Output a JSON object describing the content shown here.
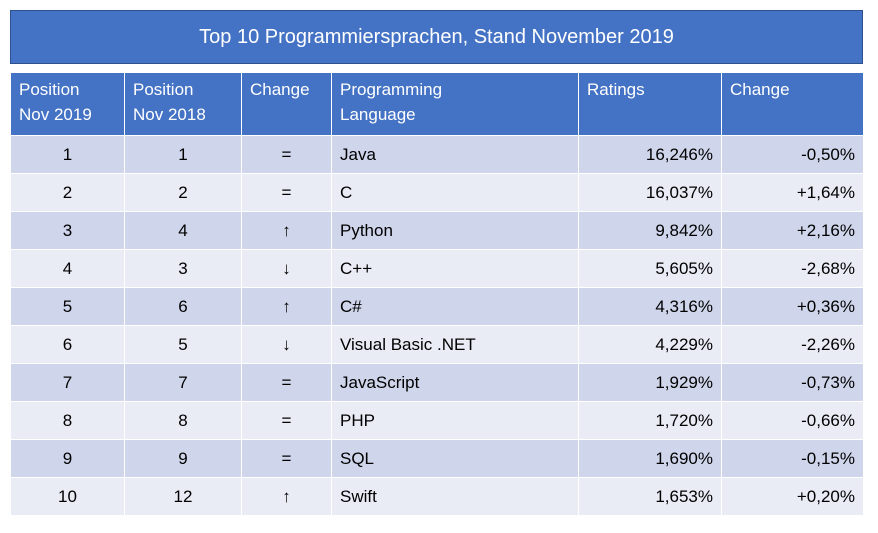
{
  "title": "Top 10 Programmiersprachen, Stand November 2019",
  "table": {
    "header": [
      "Position\nNov 2019",
      "Position\nNov 2018",
      "Change",
      "Programming\nLanguage",
      "Ratings",
      "Change"
    ],
    "rows": [
      [
        "1",
        "1",
        "=",
        "Java",
        "16,246%",
        "-0,50%"
      ],
      [
        "2",
        "2",
        "=",
        "C",
        "16,037%",
        "+1,64%"
      ],
      [
        "3",
        "4",
        "↑",
        "Python",
        "9,842%",
        "+2,16%"
      ],
      [
        "4",
        "3",
        "↓",
        "C++",
        "5,605%",
        "-2,68%"
      ],
      [
        "5",
        "6",
        "↑",
        "C#",
        "4,316%",
        "+0,36%"
      ],
      [
        "6",
        "5",
        "↓",
        "Visual Basic .NET",
        "4,229%",
        "-2,26%"
      ],
      [
        "7",
        "7",
        "=",
        "JavaScript",
        "1,929%",
        "-0,73%"
      ],
      [
        "8",
        "8",
        "=",
        "PHP",
        "1,720%",
        "-0,66%"
      ],
      [
        "9",
        "9",
        "=",
        "SQL",
        "1,690%",
        "-0,15%"
      ],
      [
        "10",
        "12",
        "↑",
        "Swift",
        "1,653%",
        "+0,20%"
      ]
    ]
  }
}
